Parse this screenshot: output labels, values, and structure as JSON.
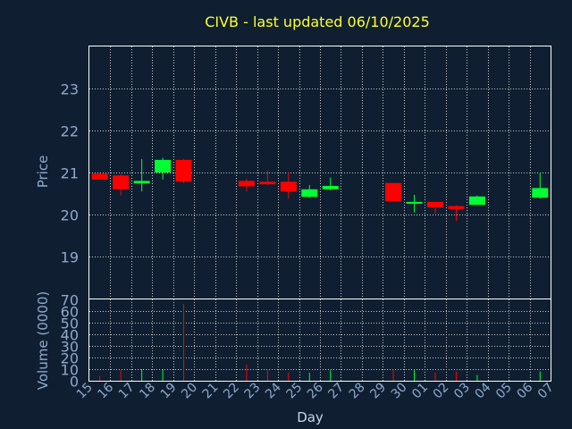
{
  "chart_data": {
    "type": "candlestick",
    "title": "CIVB - last updated 06/10/2025",
    "xlabel": "Day",
    "ylabel_price": "Price",
    "ylabel_volume": "Volume (0000)",
    "x_ticks": [
      "15",
      "16",
      "17",
      "18",
      "19",
      "20",
      "21",
      "22",
      "23",
      "24",
      "25",
      "26",
      "27",
      "28",
      "29",
      "30",
      "01",
      "02",
      "03",
      "04",
      "05",
      "06",
      "07"
    ],
    "price_ylim": [
      18.0,
      24.0
    ],
    "price_ticks": [
      19,
      20,
      21,
      22,
      23
    ],
    "volume_ylim": [
      0,
      70
    ],
    "volume_ticks": [
      0,
      10,
      20,
      30,
      40,
      50,
      60,
      70
    ],
    "grid": true,
    "colors": {
      "background": "#0f1f31",
      "up": "#00ff33",
      "down": "#ff0000",
      "title": "#ffff33",
      "axis_text": "#8fa9cc",
      "frame": "#ffffff"
    },
    "candles": [
      {
        "day": "15",
        "open": 20.97,
        "high": 21.0,
        "low": 20.83,
        "close": 20.83,
        "volume": 4
      },
      {
        "day": "16",
        "open": 20.93,
        "high": 20.97,
        "low": 20.45,
        "close": 20.6,
        "volume": 9
      },
      {
        "day": "17",
        "open": 20.74,
        "high": 21.32,
        "low": 20.55,
        "close": 20.8,
        "volume": 10
      },
      {
        "day": "18",
        "open": 21.0,
        "high": 21.35,
        "low": 20.83,
        "close": 21.3,
        "volume": 10
      },
      {
        "day": "19",
        "open": 21.3,
        "high": 21.32,
        "low": 20.75,
        "close": 20.78,
        "volume": 66
      },
      {
        "day": "22",
        "open": 20.8,
        "high": 20.85,
        "low": 20.55,
        "close": 20.67,
        "volume": 14
      },
      {
        "day": "23",
        "open": 20.78,
        "high": 21.05,
        "low": 20.7,
        "close": 20.72,
        "volume": 9
      },
      {
        "day": "24",
        "open": 20.78,
        "high": 21.0,
        "low": 20.38,
        "close": 20.55,
        "volume": 7
      },
      {
        "day": "25",
        "open": 20.42,
        "high": 20.7,
        "low": 20.4,
        "close": 20.6,
        "volume": 7
      },
      {
        "day": "26",
        "open": 20.6,
        "high": 20.88,
        "low": 20.58,
        "close": 20.68,
        "volume": 9
      },
      {
        "day": "29",
        "open": 20.75,
        "high": 20.75,
        "low": 20.32,
        "close": 20.32,
        "volume": 10
      },
      {
        "day": "30",
        "open": 20.28,
        "high": 20.47,
        "low": 20.05,
        "close": 20.3,
        "volume": 9
      },
      {
        "day": "01",
        "open": 20.3,
        "high": 20.3,
        "low": 20.02,
        "close": 20.17,
        "volume": 7
      },
      {
        "day": "02",
        "open": 20.2,
        "high": 20.22,
        "low": 19.85,
        "close": 20.13,
        "volume": 8
      },
      {
        "day": "03",
        "open": 20.23,
        "high": 20.45,
        "low": 20.23,
        "close": 20.43,
        "volume": 5
      },
      {
        "day": "06",
        "open": 20.4,
        "high": 21.0,
        "low": 20.38,
        "close": 20.63,
        "volume": 8
      }
    ]
  }
}
